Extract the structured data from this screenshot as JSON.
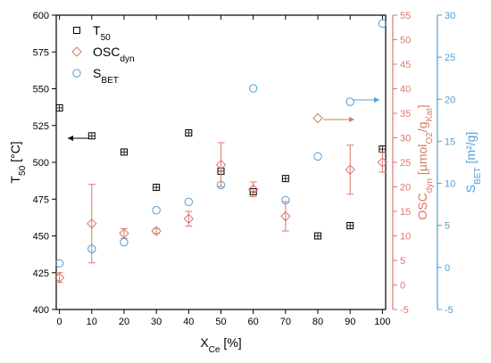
{
  "chart_data": {
    "type": "scatter",
    "x": {
      "label_main": "X",
      "label_sub": "Ce",
      "label_tail": " [%]",
      "range": [
        -1,
        101
      ],
      "ticks": [
        0,
        10,
        20,
        30,
        40,
        50,
        60,
        70,
        80,
        90,
        100
      ]
    },
    "y_left": {
      "label_main": "T",
      "label_sub": "50",
      "label_tail": " [°C]",
      "range": [
        400,
        600
      ],
      "ticks": [
        400,
        425,
        450,
        475,
        500,
        525,
        550,
        575,
        600
      ],
      "color": "#000000"
    },
    "y_right1": {
      "label_parts": [
        {
          "t": "OSC",
          "s": "n"
        },
        {
          "t": "dyn",
          "s": "sub"
        },
        {
          "t": " [µmol",
          "s": "n"
        },
        {
          "t": "O2",
          "s": "sub"
        },
        {
          "t": "/g",
          "s": "n"
        },
        {
          "t": "Kat",
          "s": "sub"
        },
        {
          "t": "]",
          "s": "n"
        }
      ],
      "range": [
        -5,
        55
      ],
      "ticks": [
        -5,
        0,
        5,
        10,
        15,
        20,
        25,
        30,
        35,
        40,
        45,
        50,
        55
      ],
      "color": "#d9796b"
    },
    "y_right2": {
      "label_main": "S",
      "label_sub": "BET",
      "label_tail": " [m²/g]",
      "range": [
        -5,
        30
      ],
      "ticks": [
        -5,
        0,
        5,
        10,
        15,
        20,
        25,
        30
      ],
      "color": "#4f9fd6"
    },
    "legend": {
      "position": "top-left",
      "items": [
        {
          "main": "T",
          "sub": "50"
        },
        {
          "main": "OSC",
          "sub": "dyn"
        },
        {
          "main": "S",
          "sub": "BET"
        }
      ]
    },
    "series": [
      {
        "name": "T50",
        "axis": "left",
        "marker": "square-cross",
        "color": "#000000",
        "x": [
          0,
          10,
          20,
          30,
          40,
          50,
          60,
          70,
          80,
          90,
          100
        ],
        "y": [
          537,
          518,
          507,
          483,
          520,
          494,
          480,
          489,
          450,
          457,
          509
        ]
      },
      {
        "name": "OSCdyn",
        "axis": "right1",
        "marker": "diamond",
        "color": "#d9796b",
        "x": [
          0,
          10,
          20,
          30,
          40,
          50,
          60,
          70,
          80,
          90,
          100
        ],
        "y": [
          1.5,
          12.5,
          10.5,
          11,
          13.5,
          24.5,
          19.5,
          14,
          34,
          23.5,
          25
        ],
        "err": [
          1,
          8,
          1,
          0.5,
          1.5,
          4.5,
          1.5,
          3,
          0,
          5,
          2
        ]
      },
      {
        "name": "SBET",
        "axis": "right2",
        "marker": "circle",
        "color": "#4f9fd6",
        "x": [
          0,
          10,
          20,
          30,
          40,
          50,
          60,
          70,
          80,
          90,
          100
        ],
        "y": [
          0.5,
          2.2,
          3,
          6.8,
          7.8,
          9.8,
          21.3,
          8,
          13.2,
          19.7,
          29
        ]
      }
    ]
  }
}
